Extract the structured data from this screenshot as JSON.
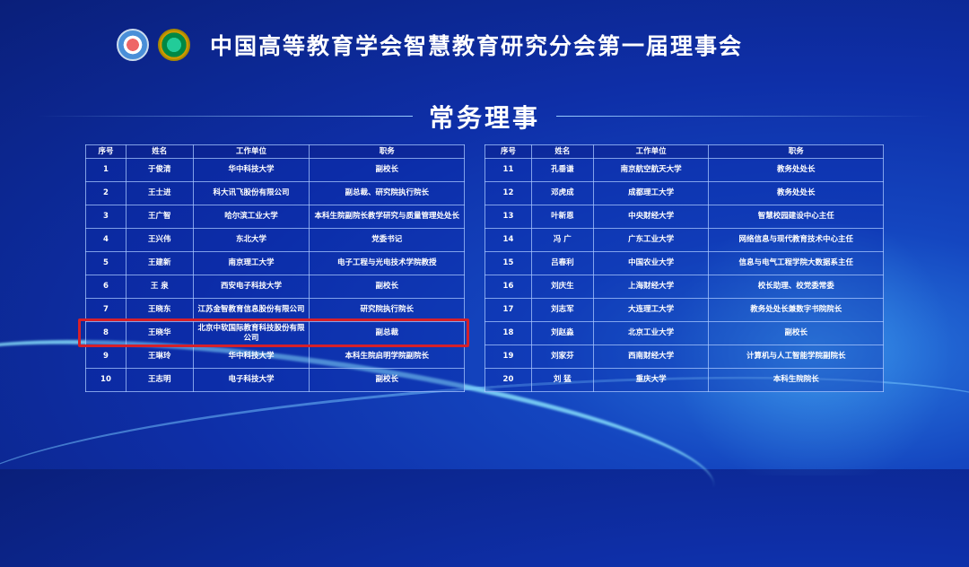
{
  "header": {
    "title": "中国高等教育学会智慧教育研究分会第一届理事会",
    "logos": [
      "society-logo",
      "university-logo"
    ]
  },
  "section_title": "常务理事",
  "columns": [
    "序号",
    "姓名",
    "工作单位",
    "职务"
  ],
  "left_rows": [
    [
      "1",
      "于俊清",
      "华中科技大学",
      "副校长"
    ],
    [
      "2",
      "王士进",
      "科大讯飞股份有限公司",
      "副总裁、研究院执行院长"
    ],
    [
      "3",
      "王广智",
      "哈尔滨工业大学",
      "本科生院副院长教学研究与质量管理处处长"
    ],
    [
      "4",
      "王兴伟",
      "东北大学",
      "党委书记"
    ],
    [
      "5",
      "王建新",
      "南京理工大学",
      "电子工程与光电技术学院教授"
    ],
    [
      "6",
      "王 泉",
      "西安电子科技大学",
      "副校长"
    ],
    [
      "7",
      "王晓东",
      "江苏金智教育信息股份有限公司",
      "研究院执行院长"
    ],
    [
      "8",
      "王晓华",
      "北京中软国际教育科技股份有限公司",
      "副总裁"
    ],
    [
      "9",
      "王琳玲",
      "华中科技大学",
      "本科生院启明学院副院长"
    ],
    [
      "10",
      "王志明",
      "电子科技大学",
      "副校长"
    ]
  ],
  "right_rows": [
    [
      "11",
      "孔垂谦",
      "南京航空航天大学",
      "教务处处长"
    ],
    [
      "12",
      "邓虎成",
      "成都理工大学",
      "教务处处长"
    ],
    [
      "13",
      "叶新恩",
      "中央财经大学",
      "智慧校园建设中心主任"
    ],
    [
      "14",
      "冯 广",
      "广东工业大学",
      "网络信息与现代教育技术中心主任"
    ],
    [
      "15",
      "吕春利",
      "中国农业大学",
      "信息与电气工程学院大数据系主任"
    ],
    [
      "16",
      "刘庆生",
      "上海财经大学",
      "校长助理、校党委常委"
    ],
    [
      "17",
      "刘志军",
      "大连理工大学",
      "教务处处长兼数字书院院长"
    ],
    [
      "18",
      "刘赵淼",
      "北京工业大学",
      "副校长"
    ],
    [
      "19",
      "刘家芬",
      "西南财经大学",
      "计算机与人工智能学院副院长"
    ],
    [
      "20",
      "刘 猛",
      "重庆大学",
      "本科生院院长"
    ]
  ],
  "highlighted_row": "8",
  "colors": {
    "background": "#0e2fa8",
    "highlight": "#d5202a"
  }
}
